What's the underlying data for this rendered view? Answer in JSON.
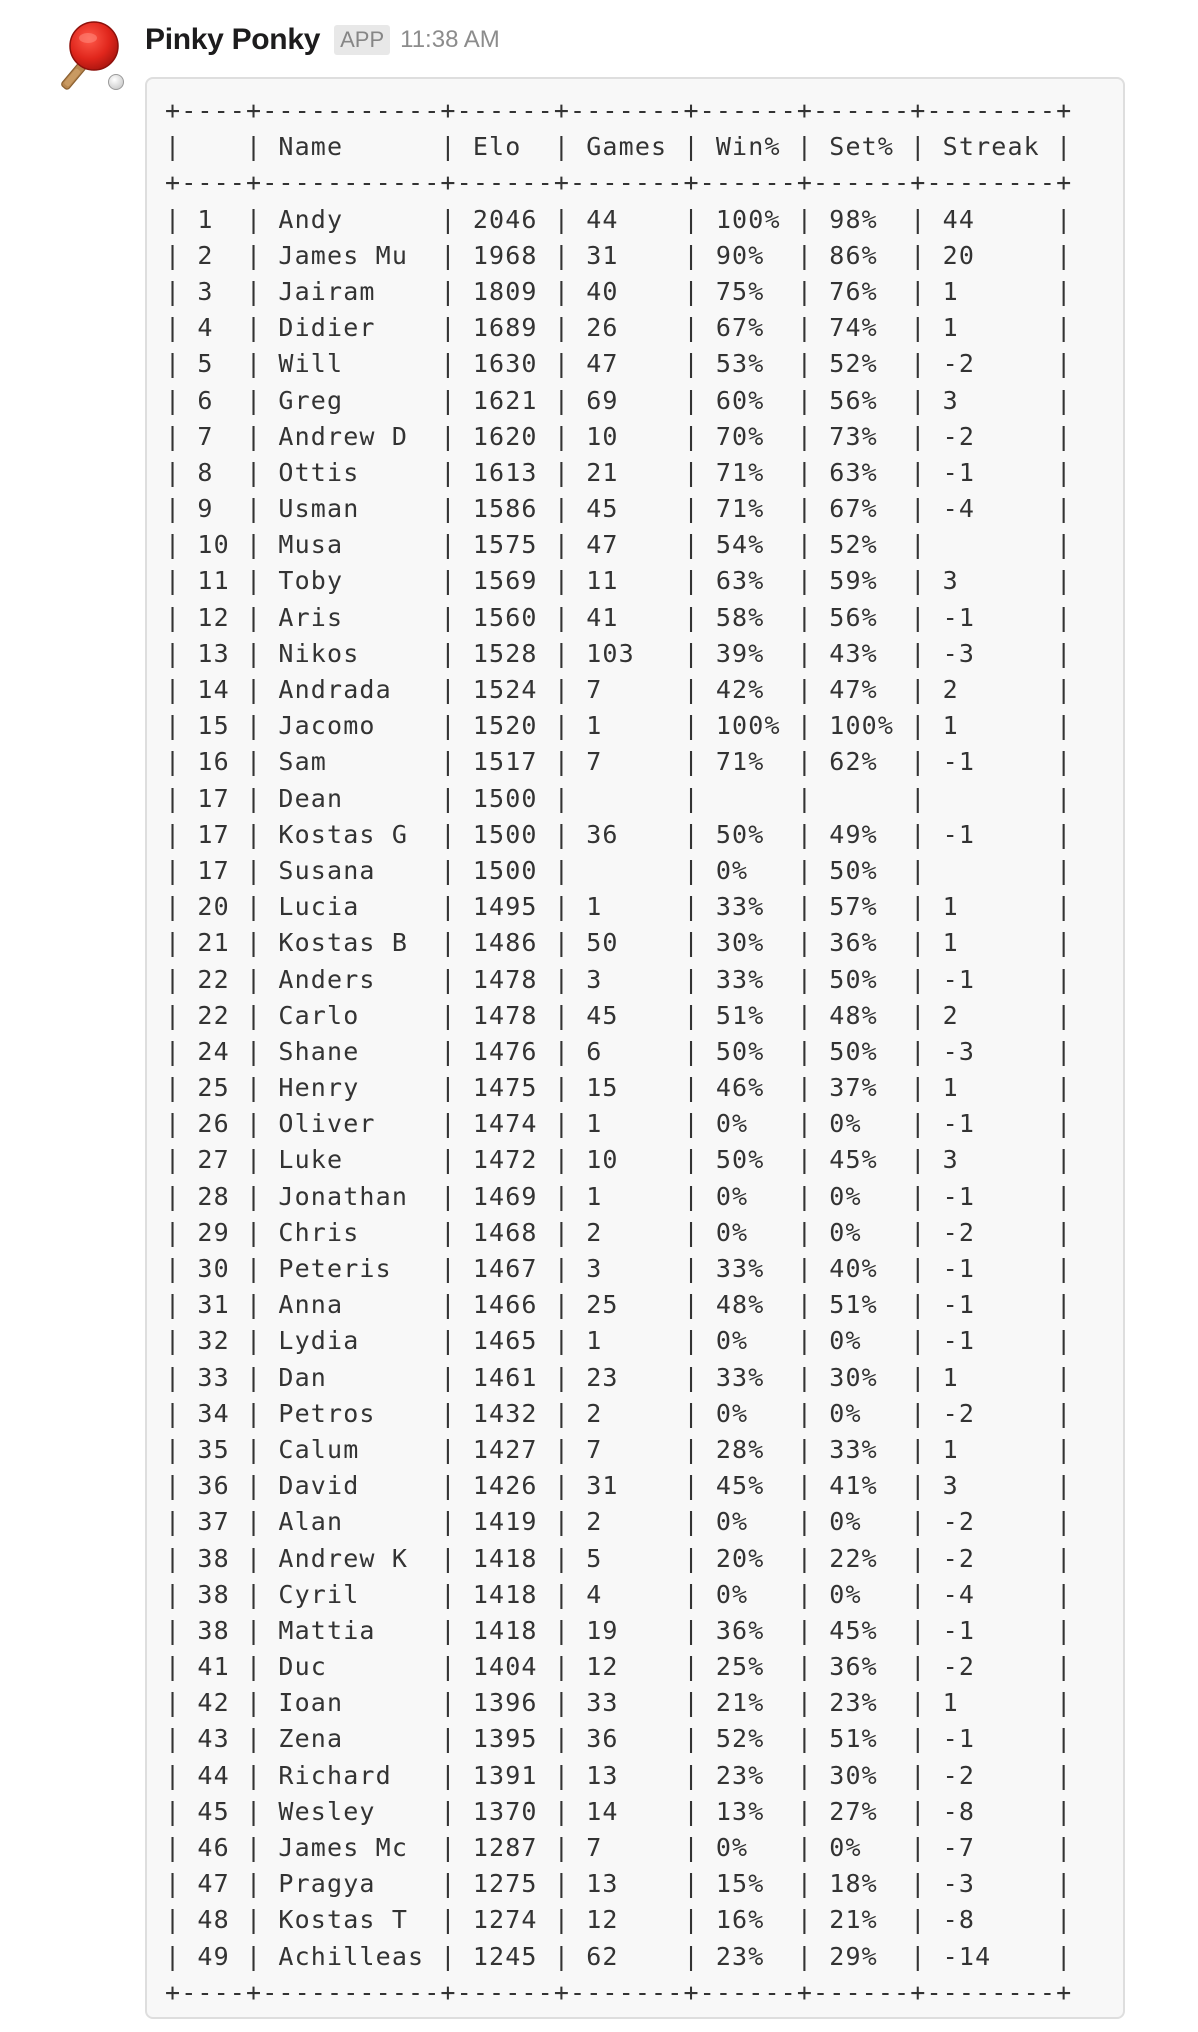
{
  "message": {
    "sender": "Pinky Ponky",
    "badge": "APP",
    "time": "11:38 AM",
    "avatar_icon": "ping-pong-paddle-icon",
    "colors": {
      "paddle_red": "#d9251c",
      "ball": "#f2f2f2",
      "code_background": "#f8f8f8",
      "code_border": "#dedede"
    }
  },
  "leaderboard": {
    "columns": [
      "",
      "Name",
      "Elo",
      "Games",
      "Win%",
      "Set%",
      "Streak"
    ],
    "rows": [
      [
        "1",
        "Andy",
        "2046",
        "44",
        "100%",
        "98%",
        "44"
      ],
      [
        "2",
        "James Mu",
        "1968",
        "31",
        "90%",
        "86%",
        "20"
      ],
      [
        "3",
        "Jairam",
        "1809",
        "40",
        "75%",
        "76%",
        "1"
      ],
      [
        "4",
        "Didier",
        "1689",
        "26",
        "67%",
        "74%",
        "1"
      ],
      [
        "5",
        "Will",
        "1630",
        "47",
        "53%",
        "52%",
        "-2"
      ],
      [
        "6",
        "Greg",
        "1621",
        "69",
        "60%",
        "56%",
        "3"
      ],
      [
        "7",
        "Andrew D",
        "1620",
        "10",
        "70%",
        "73%",
        "-2"
      ],
      [
        "8",
        "Ottis",
        "1613",
        "21",
        "71%",
        "63%",
        "-1"
      ],
      [
        "9",
        "Usman",
        "1586",
        "45",
        "71%",
        "67%",
        "-4"
      ],
      [
        "10",
        "Musa",
        "1575",
        "47",
        "54%",
        "52%",
        ""
      ],
      [
        "11",
        "Toby",
        "1569",
        "11",
        "63%",
        "59%",
        "3"
      ],
      [
        "12",
        "Aris",
        "1560",
        "41",
        "58%",
        "56%",
        "-1"
      ],
      [
        "13",
        "Nikos",
        "1528",
        "103",
        "39%",
        "43%",
        "-3"
      ],
      [
        "14",
        "Andrada",
        "1524",
        "7",
        "42%",
        "47%",
        "2"
      ],
      [
        "15",
        "Jacomo",
        "1520",
        "1",
        "100%",
        "100%",
        "1"
      ],
      [
        "16",
        "Sam",
        "1517",
        "7",
        "71%",
        "62%",
        "-1"
      ],
      [
        "17",
        "Dean",
        "1500",
        "",
        "",
        "",
        ""
      ],
      [
        "17",
        "Kostas G",
        "1500",
        "36",
        "50%",
        "49%",
        "-1"
      ],
      [
        "17",
        "Susana",
        "1500",
        "",
        "0%",
        "50%",
        ""
      ],
      [
        "20",
        "Lucia",
        "1495",
        "1",
        "33%",
        "57%",
        "1"
      ],
      [
        "21",
        "Kostas B",
        "1486",
        "50",
        "30%",
        "36%",
        "1"
      ],
      [
        "22",
        "Anders",
        "1478",
        "3",
        "33%",
        "50%",
        "-1"
      ],
      [
        "22",
        "Carlo",
        "1478",
        "45",
        "51%",
        "48%",
        "2"
      ],
      [
        "24",
        "Shane",
        "1476",
        "6",
        "50%",
        "50%",
        "-3"
      ],
      [
        "25",
        "Henry",
        "1475",
        "15",
        "46%",
        "37%",
        "1"
      ],
      [
        "26",
        "Oliver",
        "1474",
        "1",
        "0%",
        "0%",
        "-1"
      ],
      [
        "27",
        "Luke",
        "1472",
        "10",
        "50%",
        "45%",
        "3"
      ],
      [
        "28",
        "Jonathan",
        "1469",
        "1",
        "0%",
        "0%",
        "-1"
      ],
      [
        "29",
        "Chris",
        "1468",
        "2",
        "0%",
        "0%",
        "-2"
      ],
      [
        "30",
        "Peteris",
        "1467",
        "3",
        "33%",
        "40%",
        "-1"
      ],
      [
        "31",
        "Anna",
        "1466",
        "25",
        "48%",
        "51%",
        "-1"
      ],
      [
        "32",
        "Lydia",
        "1465",
        "1",
        "0%",
        "0%",
        "-1"
      ],
      [
        "33",
        "Dan",
        "1461",
        "23",
        "33%",
        "30%",
        "1"
      ],
      [
        "34",
        "Petros",
        "1432",
        "2",
        "0%",
        "0%",
        "-2"
      ],
      [
        "35",
        "Calum",
        "1427",
        "7",
        "28%",
        "33%",
        "1"
      ],
      [
        "36",
        "David",
        "1426",
        "31",
        "45%",
        "41%",
        "3"
      ],
      [
        "37",
        "Alan",
        "1419",
        "2",
        "0%",
        "0%",
        "-2"
      ],
      [
        "38",
        "Andrew K",
        "1418",
        "5",
        "20%",
        "22%",
        "-2"
      ],
      [
        "38",
        "Cyril",
        "1418",
        "4",
        "0%",
        "0%",
        "-4"
      ],
      [
        "38",
        "Mattia",
        "1418",
        "19",
        "36%",
        "45%",
        "-1"
      ],
      [
        "41",
        "Duc",
        "1404",
        "12",
        "25%",
        "36%",
        "-2"
      ],
      [
        "42",
        "Ioan",
        "1396",
        "33",
        "21%",
        "23%",
        "1"
      ],
      [
        "43",
        "Zena",
        "1395",
        "36",
        "52%",
        "51%",
        "-1"
      ],
      [
        "44",
        "Richard",
        "1391",
        "13",
        "23%",
        "30%",
        "-2"
      ],
      [
        "45",
        "Wesley",
        "1370",
        "14",
        "13%",
        "27%",
        "-8"
      ],
      [
        "46",
        "James Mc",
        "1287",
        "7",
        "0%",
        "0%",
        "-7"
      ],
      [
        "47",
        "Pragya",
        "1275",
        "13",
        "15%",
        "18%",
        "-3"
      ],
      [
        "48",
        "Kostas T",
        "1274",
        "12",
        "16%",
        "21%",
        "-8"
      ],
      [
        "49",
        "Achilleas",
        "1245",
        "62",
        "23%",
        "29%",
        "-14"
      ]
    ]
  }
}
